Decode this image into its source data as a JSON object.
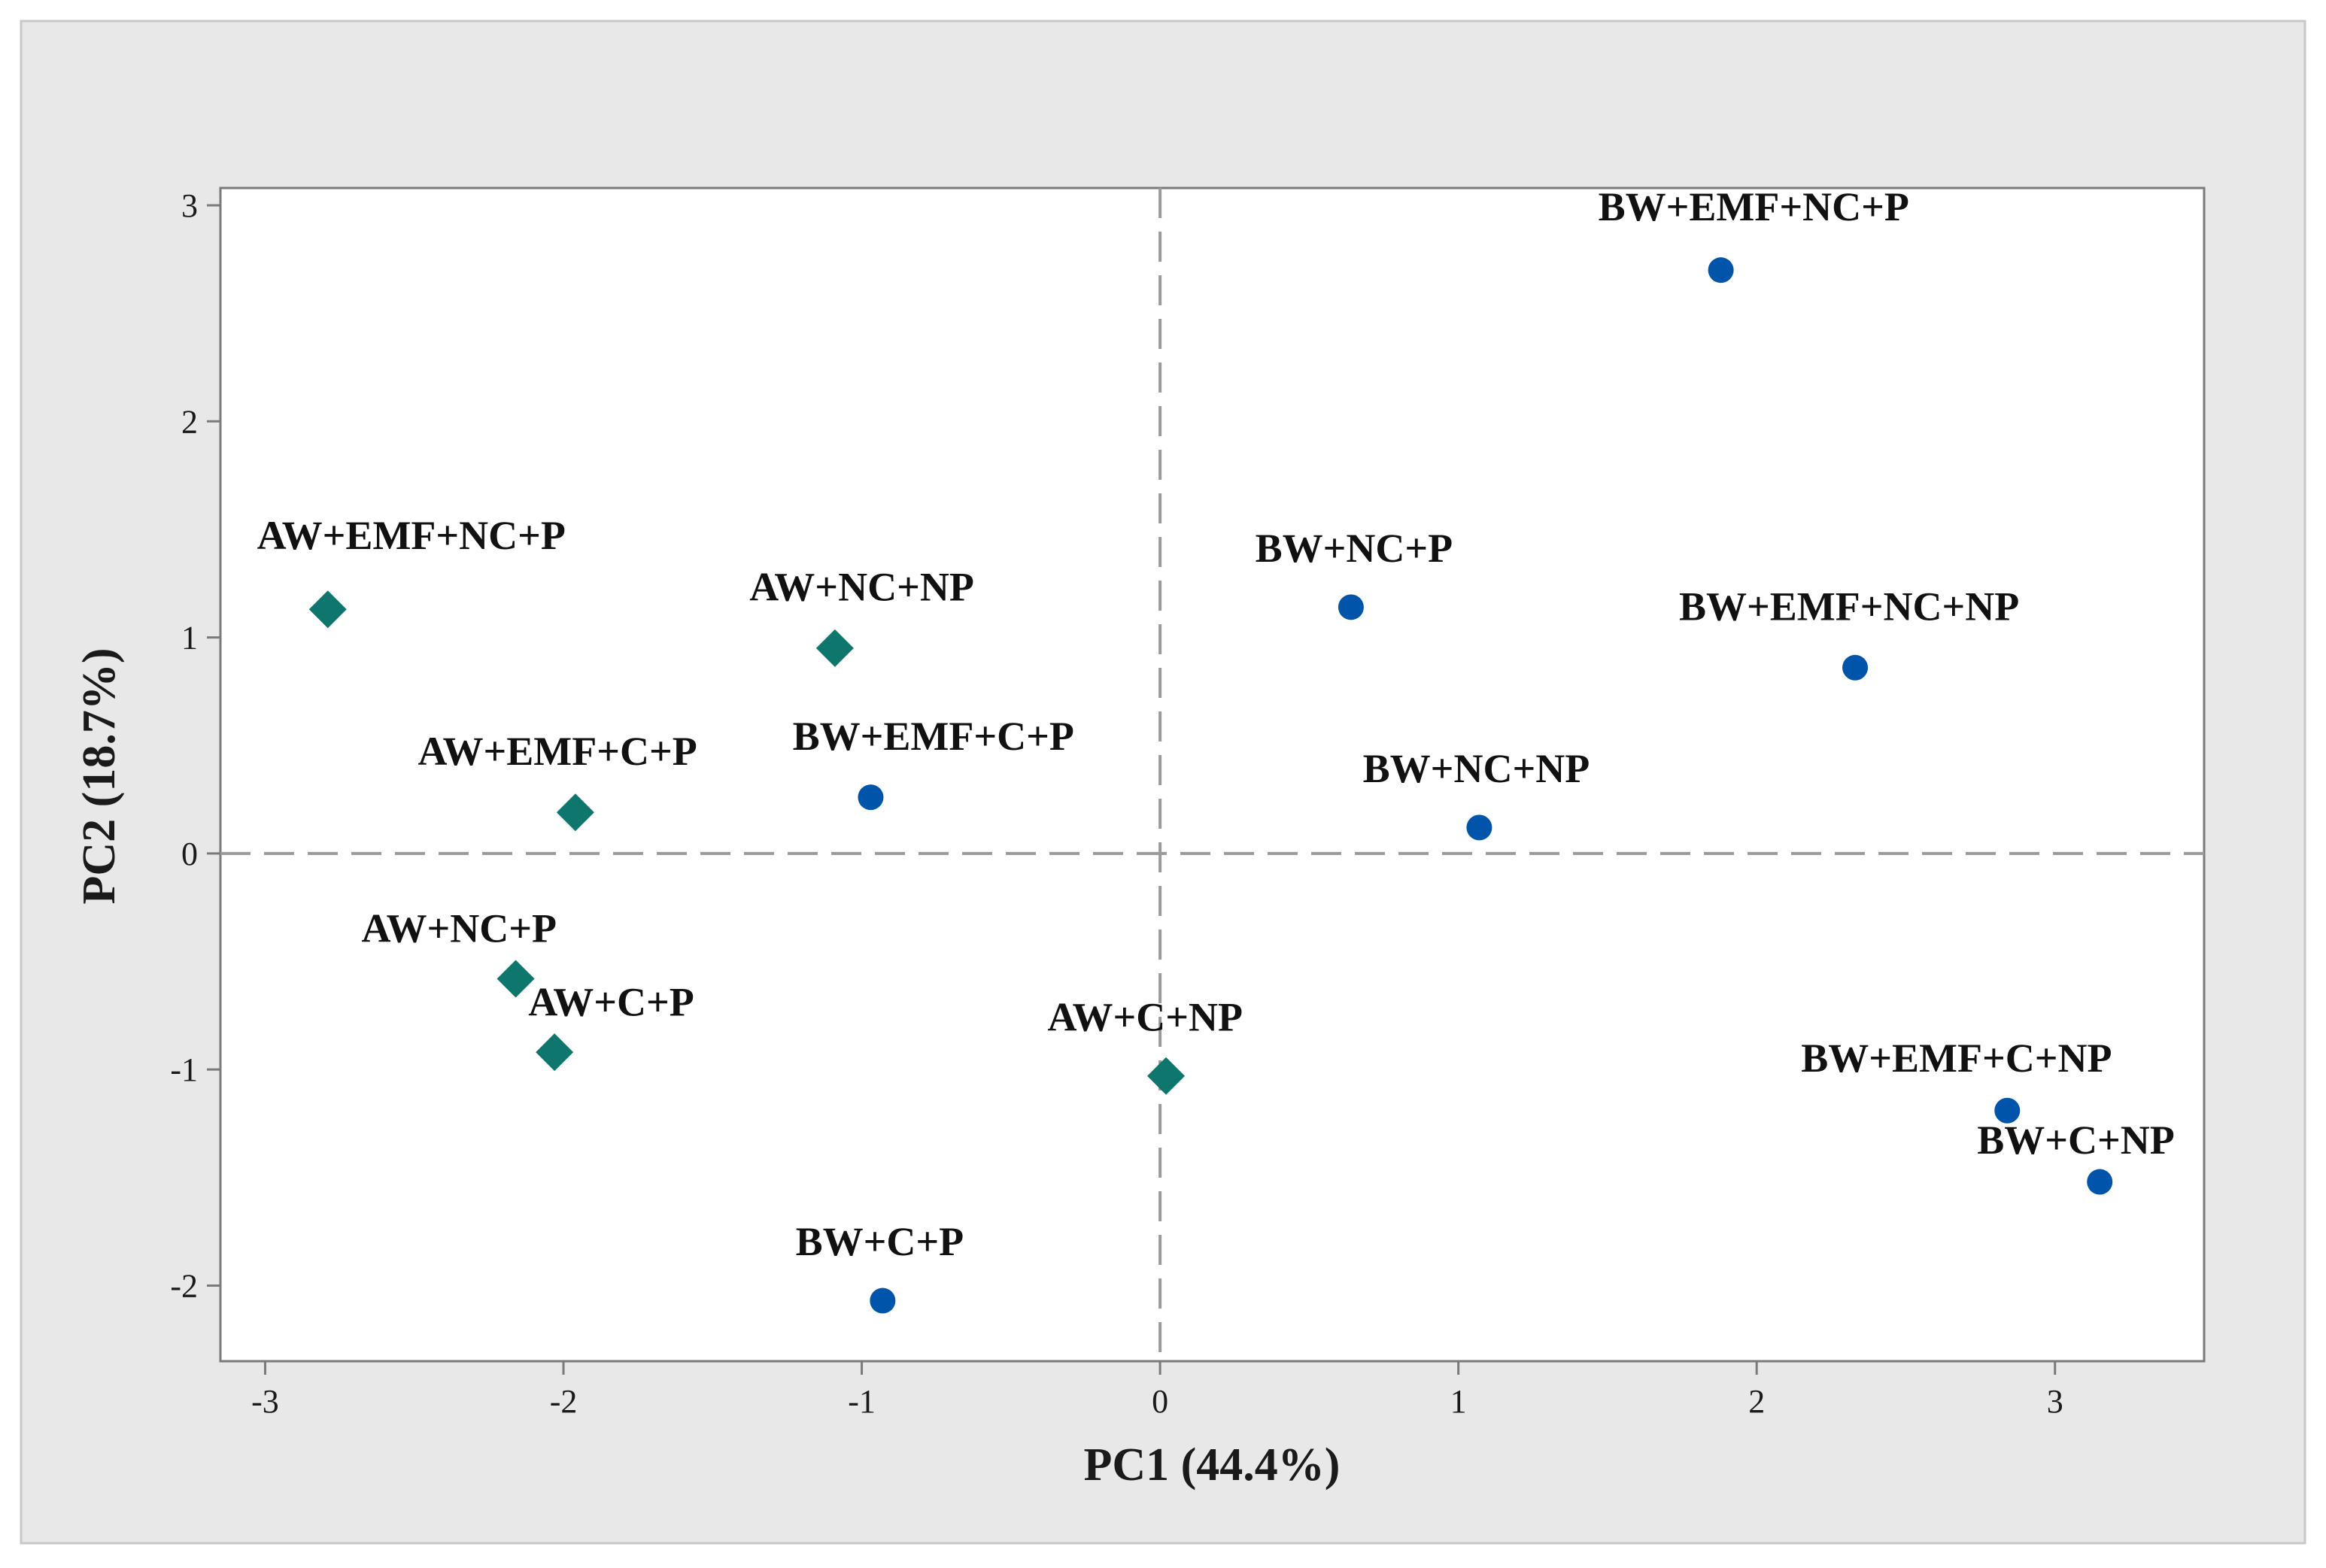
{
  "chart_data": {
    "type": "scatter",
    "title": "",
    "xlabel": "PC1 (44.4%)",
    "ylabel": "PC2 (18.7%)",
    "xlim": [
      -3.15,
      3.5
    ],
    "ylim": [
      -2.35,
      3.08
    ],
    "xticks": [
      -3,
      -2,
      -1,
      0,
      1,
      2,
      3
    ],
    "yticks": [
      -2,
      -1,
      0,
      1,
      2,
      3
    ],
    "reference_lines": {
      "x": 0,
      "y": 0,
      "style": "dashed"
    },
    "series": [
      {
        "name": "AW",
        "marker": "diamond",
        "color": "#0f766e",
        "points": [
          {
            "label": "AW+EMF+NC+P",
            "x": -2.79,
            "y": 1.13,
            "label_dx": 0.28,
            "label_dy": 0.28
          },
          {
            "label": "AW+NC+NP",
            "x": -1.09,
            "y": 0.95,
            "label_dx": 0.09,
            "label_dy": 0.22
          },
          {
            "label": "AW+EMF+C+P",
            "x": -1.96,
            "y": 0.19,
            "label_dx": -0.06,
            "label_dy": 0.22
          },
          {
            "label": "AW+NC+P",
            "x": -2.16,
            "y": -0.58,
            "label_dx": -0.19,
            "label_dy": 0.17
          },
          {
            "label": "AW+C+P",
            "x": -2.03,
            "y": -0.92,
            "label_dx": 0.19,
            "label_dy": 0.17
          },
          {
            "label": "AW+C+NP",
            "x": 0.02,
            "y": -1.03,
            "label_dx": -0.07,
            "label_dy": 0.21
          }
        ]
      },
      {
        "name": "BW",
        "marker": "circle",
        "color": "#0055aa",
        "points": [
          {
            "label": "BW+EMF+NC+P",
            "x": 1.88,
            "y": 2.7,
            "label_dx": 0.11,
            "label_dy": 0.23
          },
          {
            "label": "BW+NC+P",
            "x": 0.64,
            "y": 1.14,
            "label_dx": 0.01,
            "label_dy": 0.21
          },
          {
            "label": "BW+EMF+NC+NP",
            "x": 2.33,
            "y": 0.86,
            "label_dx": -0.02,
            "label_dy": 0.22
          },
          {
            "label": "BW+EMF+C+P",
            "x": -0.97,
            "y": 0.26,
            "label_dx": 0.21,
            "label_dy": 0.22
          },
          {
            "label": "BW+NC+NP",
            "x": 1.07,
            "y": 0.12,
            "label_dx": -0.01,
            "label_dy": 0.21
          },
          {
            "label": "BW+C+P",
            "x": -0.93,
            "y": -2.07,
            "label_dx": -0.01,
            "label_dy": 0.21
          },
          {
            "label": "BW+EMF+C+NP",
            "x": 2.84,
            "y": -1.19,
            "label_dx": -0.17,
            "label_dy": 0.18
          },
          {
            "label": "BW+C+NP",
            "x": 3.15,
            "y": -1.52,
            "label_dx": -0.08,
            "label_dy": 0.13
          }
        ]
      }
    ]
  },
  "colors": {
    "frame_background": "#e8e8e8",
    "plot_background": "#ffffff",
    "axis_color": "#7a7a7a",
    "reference_line_color": "#9a9a9a"
  }
}
